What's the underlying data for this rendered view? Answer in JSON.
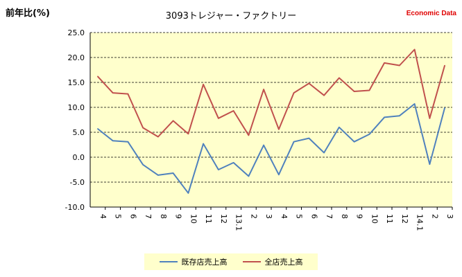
{
  "header": {
    "ylabel": "前年比(%)",
    "title": "3093トレジャー・ファクトリー",
    "brand": "Economic Data"
  },
  "colors": {
    "plot_bg": "#ffffcc",
    "series1": "#4f81bd",
    "series2": "#c0504d",
    "brand": "#e00000"
  },
  "chart_data": {
    "type": "line",
    "title": "3093トレジャー・ファクトリー",
    "xlabel": "",
    "ylabel": "前年比(%)",
    "ylim": [
      -10,
      25
    ],
    "yticks": [
      "25.0",
      "20.0",
      "15.0",
      "10.0",
      "5.0",
      "0.0",
      "-5.0",
      "-10.0"
    ],
    "ytick_values": [
      25,
      20,
      15,
      10,
      5,
      0,
      -5,
      -10
    ],
    "grid": "horizontal dashed",
    "legend": "bottom",
    "categories": [
      "4",
      "5",
      "6",
      "7",
      "8",
      "9",
      "10",
      "11",
      "12",
      "13.1",
      "2",
      "3",
      "4",
      "5",
      "6",
      "7",
      "8",
      "9",
      "10",
      "11",
      "12",
      "14.1",
      "2",
      "3"
    ],
    "series": [
      {
        "name": "既存店売上高",
        "color": "#4f81bd",
        "values": [
          5.7,
          3.3,
          3.1,
          -1.5,
          -3.6,
          -3.2,
          -7.2,
          2.7,
          -2.5,
          -1.1,
          -3.8,
          2.4,
          -3.5,
          3.1,
          3.8,
          0.9,
          6.0,
          3.1,
          4.6,
          8.0,
          8.3,
          10.7,
          -1.4,
          9.9
        ]
      },
      {
        "name": "全店売上高",
        "color": "#c0504d",
        "values": [
          16.2,
          12.9,
          12.7,
          5.9,
          4.1,
          7.3,
          4.7,
          14.6,
          7.8,
          9.3,
          4.4,
          13.6,
          5.6,
          12.9,
          14.8,
          12.4,
          15.9,
          13.2,
          13.4,
          18.9,
          18.4,
          21.6,
          7.8,
          18.4
        ]
      }
    ]
  }
}
